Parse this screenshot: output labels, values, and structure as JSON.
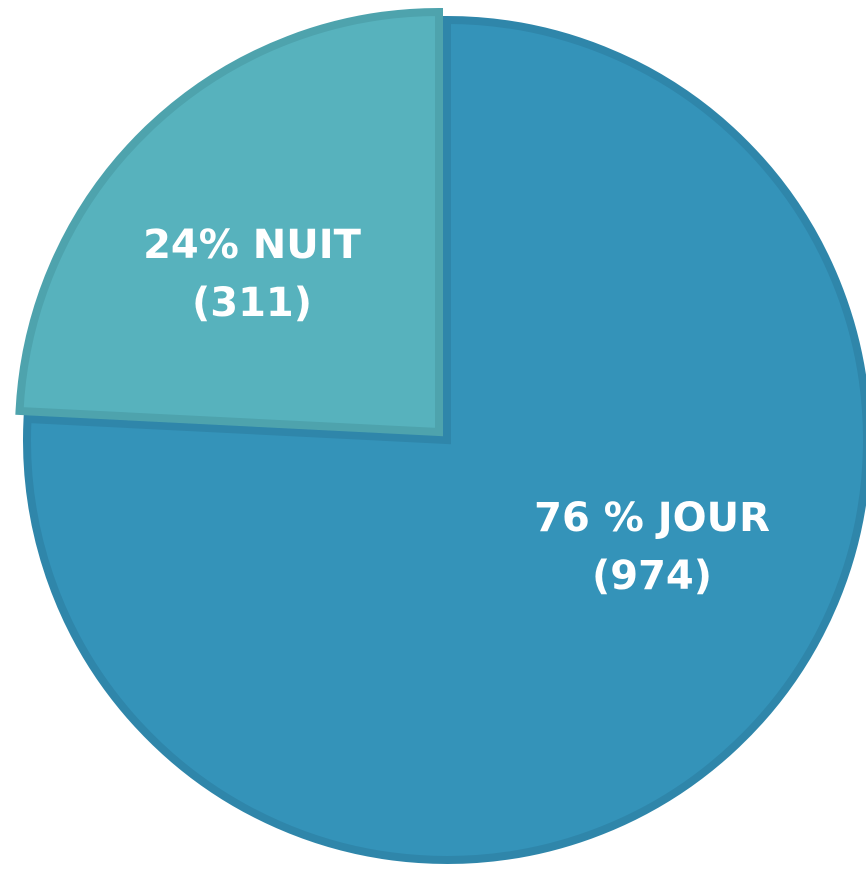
{
  "chart_data": {
    "type": "pie",
    "labels": [
      "76 % JOUR",
      "24% NUIT"
    ],
    "value_labels": [
      "(974)",
      "(311)"
    ],
    "values": [
      974,
      311
    ],
    "colors": [
      "#3493b9",
      "#57b2bd"
    ],
    "stroke_colors": [
      "#2f86aa",
      "#4ea3ad"
    ]
  }
}
